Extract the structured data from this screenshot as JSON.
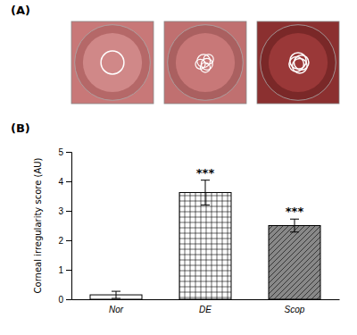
{
  "chart_data": {
    "type": "bar",
    "categories": [
      "Nor",
      "DE",
      "Scop"
    ],
    "values": [
      0.15,
      3.62,
      2.5
    ],
    "errors": [
      0.12,
      0.42,
      0.22
    ],
    "colors": [
      "white",
      "white",
      "#888888"
    ],
    "ylabel": "Corneal irregularity score (AU)",
    "ylim": [
      0,
      5
    ],
    "yticks": [
      0,
      1,
      2,
      3,
      4,
      5
    ],
    "grid": false,
    "annotations": [
      {
        "text": "(A)"
      },
      {
        "text": "(B)"
      },
      {
        "text": "***",
        "category": "DE"
      },
      {
        "text": "***",
        "category": "Scop"
      }
    ]
  }
}
